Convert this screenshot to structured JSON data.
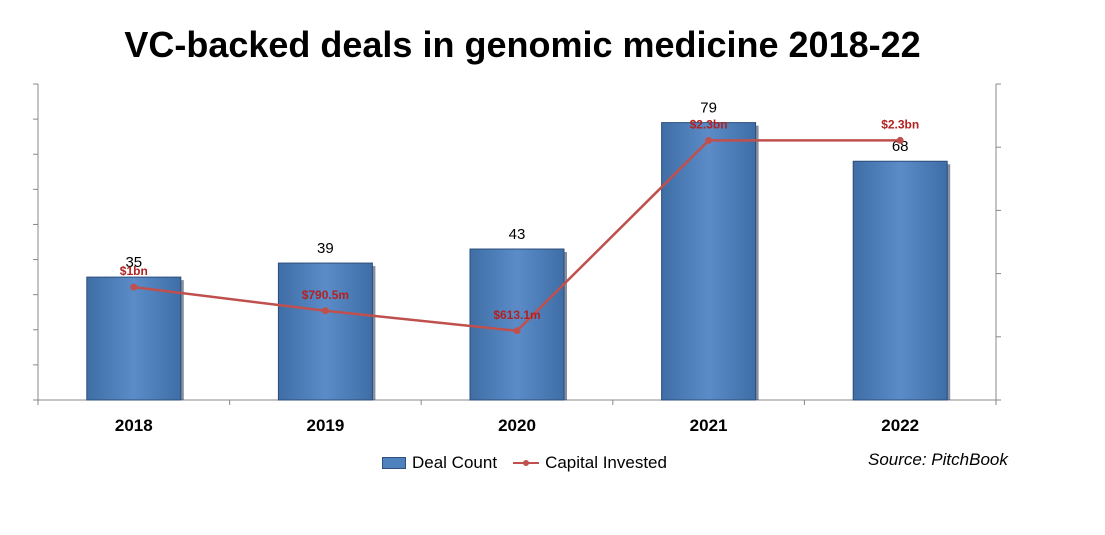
{
  "chart_data": {
    "type": "bar",
    "title": "VC-backed deals in genomic medicine 2018-22",
    "categories": [
      "2018",
      "2019",
      "2020",
      "2021",
      "2022"
    ],
    "series": [
      {
        "name": "Deal Count",
        "type": "bar",
        "values": [
          35,
          39,
          43,
          79,
          68
        ],
        "labels": [
          "35",
          "39",
          "43",
          "79",
          "68"
        ],
        "color": "#4f81bd"
      },
      {
        "name": "Capital Invested",
        "type": "line",
        "values": [
          1000,
          790.5,
          613.1,
          2300,
          2300
        ],
        "unit": "$m",
        "labels": [
          "$1bn",
          "$790.5m",
          "$613.1m",
          "$2.3bn",
          "$2.3bn"
        ],
        "color": "#c0504d"
      }
    ],
    "ylim_left": [
      0,
      90
    ],
    "ylim_right": [
      0,
      2800
    ],
    "grid": false,
    "legend_position": "bottom",
    "source": "Source: PitchBook"
  }
}
